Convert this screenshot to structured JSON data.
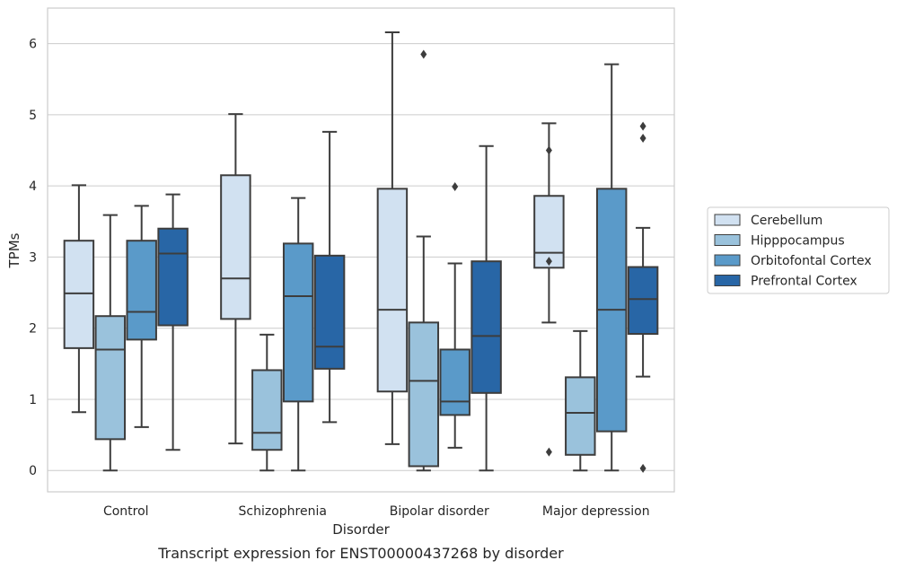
{
  "caption": "Transcript expression for ENST00000437268 by disorder",
  "chart_data": {
    "type": "box",
    "title": "",
    "xlabel": "Disorder",
    "ylabel": "TPMs",
    "ylim": [
      -0.3,
      6.5
    ],
    "yticks": [
      0,
      1,
      2,
      3,
      4,
      5,
      6
    ],
    "grid": "horizontal",
    "legend_position": "right",
    "categories": [
      "Control",
      "Schizophrenia",
      "Bipolar disorder",
      "Major depression"
    ],
    "series": [
      {
        "name": "Cerebellum",
        "color": "#d1e1f1",
        "boxes": [
          {
            "whislo": 0.82,
            "q1": 1.72,
            "med": 2.49,
            "q3": 3.23,
            "whishi": 4.01,
            "fliers": []
          },
          {
            "whislo": 0.38,
            "q1": 2.13,
            "med": 2.7,
            "q3": 4.15,
            "whishi": 5.01,
            "fliers": []
          },
          {
            "whislo": 0.37,
            "q1": 1.11,
            "med": 2.26,
            "q3": 3.96,
            "whishi": 6.16,
            "fliers": []
          },
          {
            "whislo": 2.08,
            "q1": 2.85,
            "med": 3.06,
            "q3": 3.86,
            "whishi": 4.88,
            "fliers": [
              4.5,
              2.94,
              0.26
            ]
          }
        ]
      },
      {
        "name": "Hipppocampus",
        "color": "#9ac2dc",
        "boxes": [
          {
            "whislo": 0.0,
            "q1": 0.44,
            "med": 1.7,
            "q3": 2.17,
            "whishi": 3.59,
            "fliers": []
          },
          {
            "whislo": 0.0,
            "q1": 0.29,
            "med": 0.53,
            "q3": 1.41,
            "whishi": 1.91,
            "fliers": []
          },
          {
            "whislo": 0.0,
            "q1": 0.06,
            "med": 1.26,
            "q3": 2.08,
            "whishi": 3.29,
            "fliers": [
              5.85
            ]
          },
          {
            "whislo": 0.0,
            "q1": 0.22,
            "med": 0.81,
            "q3": 1.31,
            "whishi": 1.96,
            "fliers": []
          }
        ]
      },
      {
        "name": "Orbitofontal Cortex",
        "color": "#5a9ac9",
        "boxes": [
          {
            "whislo": 0.61,
            "q1": 1.84,
            "med": 2.23,
            "q3": 3.23,
            "whishi": 3.72,
            "fliers": []
          },
          {
            "whislo": 0.0,
            "q1": 0.97,
            "med": 2.45,
            "q3": 3.19,
            "whishi": 3.83,
            "fliers": []
          },
          {
            "whislo": 0.32,
            "q1": 0.78,
            "med": 0.97,
            "q3": 1.7,
            "whishi": 2.91,
            "fliers": [
              3.99
            ]
          },
          {
            "whislo": 0.0,
            "q1": 0.55,
            "med": 2.26,
            "q3": 3.96,
            "whishi": 5.71,
            "fliers": []
          }
        ]
      },
      {
        "name": "Prefrontal Cortex",
        "color": "#2866a6",
        "boxes": [
          {
            "whislo": 0.29,
            "q1": 2.04,
            "med": 3.05,
            "q3": 3.4,
            "whishi": 3.88,
            "fliers": []
          },
          {
            "whislo": 0.68,
            "q1": 1.43,
            "med": 1.74,
            "q3": 3.02,
            "whishi": 4.76,
            "fliers": []
          },
          {
            "whislo": 0.0,
            "q1": 1.09,
            "med": 1.89,
            "q3": 2.94,
            "whishi": 4.56,
            "fliers": []
          },
          {
            "whislo": 1.32,
            "q1": 1.92,
            "med": 2.41,
            "q3": 2.86,
            "whishi": 3.41,
            "fliers": [
              4.84,
              4.67,
              0.03
            ]
          }
        ]
      }
    ]
  }
}
